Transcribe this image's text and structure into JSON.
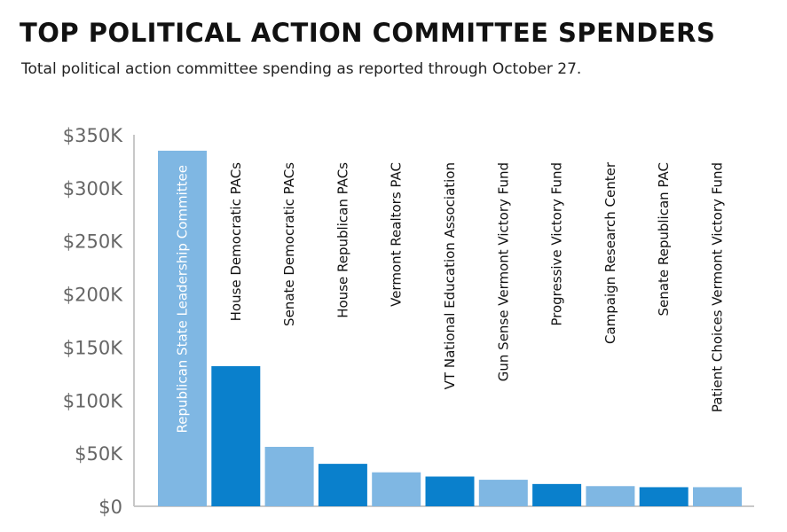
{
  "chart_data": {
    "type": "bar",
    "title": "TOP POLITICAL ACTION COMMITTEE SPENDERS",
    "subtitle": "Total political action committee spending as reported through October 27.",
    "xlabel": "",
    "ylabel": "",
    "ylim": [
      0,
      350000
    ],
    "grid": false,
    "yticks": [
      0,
      50000,
      100000,
      150000,
      200000,
      250000,
      300000,
      350000
    ],
    "ytick_labels": [
      "$0",
      "$50K",
      "$100K",
      "$150K",
      "$200K",
      "$250K",
      "$300K",
      "$350K"
    ],
    "categories": [
      "Republican State Leadership Committee",
      "House Democratic PACs",
      "Senate Democratic PACs",
      "House Republican PACs",
      "Vermont Realtors PAC",
      "VT National Education Association",
      "Gun Sense Vermont Victory Fund",
      "Progressive Victory Fund",
      "Campaign Research Center",
      "Senate Republican PAC",
      "Patient Choices Vermont Victory Fund"
    ],
    "values": [
      335000,
      132000,
      56000,
      40000,
      32000,
      28000,
      25000,
      21000,
      19000,
      18000,
      18000
    ],
    "colors": [
      "#7fb7e3",
      "#0a80cc",
      "#7fb7e3",
      "#0a80cc",
      "#7fb7e3",
      "#0a80cc",
      "#7fb7e3",
      "#0a80cc",
      "#7fb7e3",
      "#0a80cc",
      "#7fb7e3"
    ],
    "axis_color": "#c8c8c8",
    "label_color_inside": "#ffffff",
    "label_color_outside": "#111111"
  }
}
